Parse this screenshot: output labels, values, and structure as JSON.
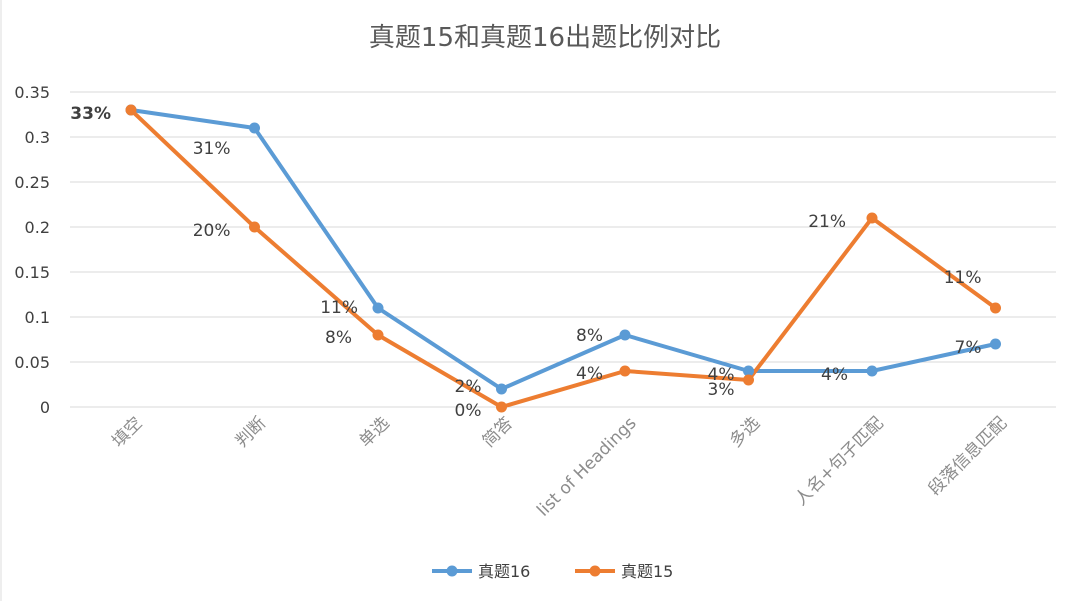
{
  "chart_data": {
    "type": "line",
    "title": "真题15和真题16出题比例对比",
    "categories": [
      "填空",
      "判断",
      "单选",
      "简答",
      "list of Headings",
      "多选",
      "人名+句子匹配",
      "段落信息匹配"
    ],
    "yticks": [
      "0",
      "0.05",
      "0.1",
      "0.15",
      "0.2",
      "0.25",
      "0.3",
      "0.35"
    ],
    "ylim": [
      0,
      0.35
    ],
    "grid": true,
    "legend_position": "bottom",
    "series": [
      {
        "name": "真题16",
        "color": "#5b9bd5",
        "values": [
          0.33,
          0.31,
          0.11,
          0.02,
          0.08,
          0.04,
          0.04,
          0.07
        ],
        "labels": [
          "33%",
          "31%",
          "11%",
          "2%",
          "8%",
          "4%",
          "4%",
          "7%"
        ]
      },
      {
        "name": "真题15",
        "color": "#ed7d31",
        "values": [
          0.33,
          0.2,
          0.08,
          0.0,
          0.04,
          0.03,
          0.21,
          0.11
        ],
        "labels": [
          "33%",
          "20%",
          "8%",
          "0%",
          "4%",
          "3%",
          "21%",
          "11%"
        ]
      }
    ]
  }
}
